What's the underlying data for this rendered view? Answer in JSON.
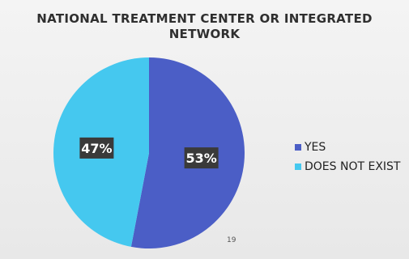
{
  "chart_data": {
    "type": "pie",
    "title": [
      "NATIONAL TREATMENT CENTER OR INTEGRATED",
      "NETWORK"
    ],
    "slices": [
      {
        "name": "YES",
        "value": 53,
        "label": "53%",
        "color": "#4b5ec6"
      },
      {
        "name": "DOES NOT EXIST",
        "value": 47,
        "label": "47%",
        "color": "#45c8ef"
      }
    ],
    "legend_position": "right"
  },
  "page_number": "19"
}
